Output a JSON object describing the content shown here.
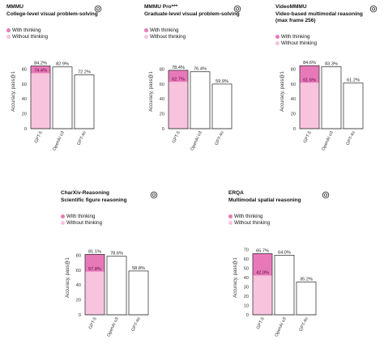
{
  "colors": {
    "with_thinking": "#e879b9",
    "without_thinking": "#f7c3dd",
    "bar_outline": "#222222",
    "axis": "#333333"
  },
  "legend": {
    "with_thinking": "With thinking",
    "without_thinking": "Without thinking"
  },
  "logo_icon": "openai-logo-icon",
  "chart_data": [
    {
      "type": "bar",
      "title": "MMMU",
      "subtitle": "College-level visual problem-solving",
      "ylabel": "Accuracy, pass@1",
      "yticks": [
        0,
        20,
        40,
        60,
        80
      ],
      "ylim": [
        0,
        100
      ],
      "categories": [
        "GPT-5",
        "OpenAI o3",
        "GPT-4o"
      ],
      "series": [
        {
          "name": "With thinking",
          "values": [
            84.2,
            82.9,
            null
          ]
        },
        {
          "name": "Without thinking",
          "values": [
            74.4,
            null,
            72.2
          ]
        }
      ],
      "labels": {
        "with": [
          "84.2%",
          "82.9%",
          ""
        ],
        "without": [
          "74.4%",
          "",
          "72.2%"
        ]
      }
    },
    {
      "type": "bar",
      "title": "MMMU Pro***",
      "subtitle": "Graduate-level visual problem-solving",
      "ylabel": "Accuracy, pass@1",
      "yticks": [
        0,
        20,
        40,
        60,
        80
      ],
      "ylim": [
        0,
        100
      ],
      "categories": [
        "GPT-5",
        "OpenAI o3",
        "GPT-4o"
      ],
      "series": [
        {
          "name": "With thinking",
          "values": [
            78.4,
            76.4,
            null
          ]
        },
        {
          "name": "Without thinking",
          "values": [
            62.7,
            null,
            59.9
          ]
        }
      ],
      "labels": {
        "with": [
          "78.4%",
          "76.4%",
          ""
        ],
        "without": [
          "62.7%",
          "",
          "59.9%"
        ]
      }
    },
    {
      "type": "bar",
      "title": "VideoMMMU",
      "subtitle": "Video-based multimodal reasoning",
      "subtitle2": "(max frame 256)",
      "ylabel": "Accuracy, pass@1",
      "yticks": [
        0,
        20,
        40,
        60,
        80
      ],
      "ylim": [
        0,
        100
      ],
      "categories": [
        "GPT-5",
        "OpenAI o3",
        "GPT-4o"
      ],
      "series": [
        {
          "name": "With thinking",
          "values": [
            84.6,
            83.3,
            null
          ]
        },
        {
          "name": "Without thinking",
          "values": [
            61.6,
            null,
            61.2
          ]
        }
      ],
      "labels": {
        "with": [
          "84.6%",
          "83.3%",
          ""
        ],
        "without": [
          "61.6%",
          "",
          "61.2%"
        ]
      }
    },
    {
      "type": "bar",
      "title": "CharXiv-Reasoning",
      "subtitle": "Scientific figure reasoning",
      "ylabel": "Accuracy, pass@1",
      "yticks": [
        0,
        20,
        40,
        60,
        80
      ],
      "ylim": [
        0,
        100
      ],
      "categories": [
        "GPT-5",
        "OpenAI o3",
        "GPT-4o"
      ],
      "series": [
        {
          "name": "With thinking",
          "values": [
            81.1,
            78.6,
            null
          ]
        },
        {
          "name": "Without thinking",
          "values": [
            57.8,
            null,
            58.8
          ]
        }
      ],
      "labels": {
        "with": [
          "81.1%",
          "78.6%",
          ""
        ],
        "without": [
          "57.8%",
          "",
          "58.8%"
        ]
      }
    },
    {
      "type": "bar",
      "title": "ERQA",
      "subtitle": "Multimodal spatial reasoning",
      "ylabel": "Accuracy, pass@1",
      "yticks": [
        0,
        10,
        20,
        30,
        40,
        50,
        60,
        70
      ],
      "ylim": [
        0,
        80
      ],
      "categories": [
        "GPT-5",
        "OpenAI o3",
        "GPT-4o"
      ],
      "series": [
        {
          "name": "With thinking",
          "values": [
            65.7,
            64.0,
            null
          ]
        },
        {
          "name": "Without thinking",
          "values": [
            42.0,
            null,
            35.2
          ]
        }
      ],
      "labels": {
        "with": [
          "65.7%",
          "64.0%",
          ""
        ],
        "without": [
          "42.0%",
          "",
          "35.2%"
        ]
      }
    }
  ]
}
